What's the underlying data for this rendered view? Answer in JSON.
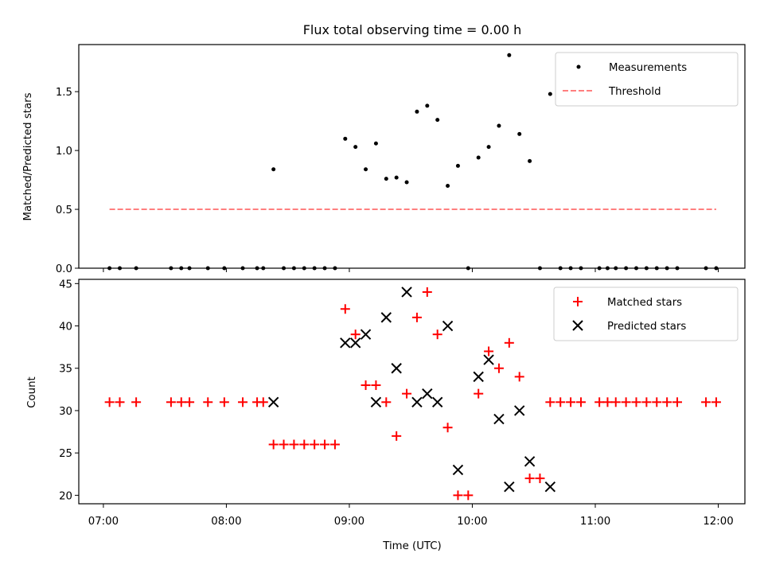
{
  "chart_data": [
    {
      "type": "scatter",
      "panel": "top",
      "title": "Flux total observing time = 0.00 h",
      "xlabel": "",
      "ylabel": "Matched/Predicted stars",
      "xlim": [
        "06:48",
        "12:13"
      ],
      "ylim": [
        0,
        1.9
      ],
      "yticks": [
        "0.0",
        "0.5",
        "1.0",
        "1.5"
      ],
      "legend_position": "top-right",
      "colors": {
        "measurements": "#000000",
        "threshold": "#ff7f7f"
      },
      "series": [
        {
          "name": "Measurements",
          "marker": "dot",
          "points": [
            [
              "07:03",
              0.0
            ],
            [
              "07:08",
              0.0
            ],
            [
              "07:16",
              0.0
            ],
            [
              "07:33",
              0.0
            ],
            [
              "07:38",
              0.0
            ],
            [
              "07:42",
              0.0
            ],
            [
              "07:51",
              0.0
            ],
            [
              "07:59",
              0.0
            ],
            [
              "08:08",
              0.0
            ],
            [
              "08:15",
              0.0
            ],
            [
              "08:18",
              0.0
            ],
            [
              "08:23",
              0.84
            ],
            [
              "08:28",
              0.0
            ],
            [
              "08:33",
              0.0
            ],
            [
              "08:38",
              0.0
            ],
            [
              "08:43",
              0.0
            ],
            [
              "08:48",
              0.0
            ],
            [
              "08:53",
              0.0
            ],
            [
              "08:58",
              1.1
            ],
            [
              "09:03",
              1.03
            ],
            [
              "09:08",
              0.84
            ],
            [
              "09:13",
              1.06
            ],
            [
              "09:18",
              0.76
            ],
            [
              "09:23",
              0.77
            ],
            [
              "09:28",
              0.73
            ],
            [
              "09:33",
              1.33
            ],
            [
              "09:38",
              1.38
            ],
            [
              "09:43",
              1.26
            ],
            [
              "09:48",
              0.7
            ],
            [
              "09:53",
              0.87
            ],
            [
              "09:58",
              0.0
            ],
            [
              "10:03",
              0.94
            ],
            [
              "10:08",
              1.03
            ],
            [
              "10:13",
              1.21
            ],
            [
              "10:18",
              1.81
            ],
            [
              "10:23",
              1.14
            ],
            [
              "10:28",
              0.91
            ],
            [
              "10:33",
              0.0
            ],
            [
              "10:38",
              1.48
            ],
            [
              "10:43",
              0.0
            ],
            [
              "10:48",
              0.0
            ],
            [
              "10:53",
              0.0
            ],
            [
              "11:02",
              0.0
            ],
            [
              "11:06",
              0.0
            ],
            [
              "11:10",
              0.0
            ],
            [
              "11:15",
              0.0
            ],
            [
              "11:20",
              0.0
            ],
            [
              "11:25",
              0.0
            ],
            [
              "11:30",
              0.0
            ],
            [
              "11:35",
              0.0
            ],
            [
              "11:40",
              0.0
            ],
            [
              "11:54",
              0.0
            ],
            [
              "11:59",
              0.0
            ]
          ]
        },
        {
          "name": "Threshold",
          "style": "dashed",
          "points": [
            [
              "07:03",
              0.5
            ],
            [
              "11:59",
              0.5
            ]
          ]
        }
      ]
    },
    {
      "type": "scatter",
      "panel": "bottom",
      "title": "",
      "xlabel": "Time (UTC)",
      "ylabel": "Count",
      "xlim": [
        "06:48",
        "12:13"
      ],
      "ylim": [
        19,
        45.5
      ],
      "yticks": [
        "20",
        "25",
        "30",
        "35",
        "40",
        "45"
      ],
      "xticks": [
        "07:00",
        "08:00",
        "09:00",
        "10:00",
        "11:00",
        "12:00"
      ],
      "legend_position": "top-right",
      "colors": {
        "matched": "#ff0000",
        "predicted": "#000000"
      },
      "series": [
        {
          "name": "Matched stars",
          "marker": "plus",
          "points": [
            [
              "07:03",
              31
            ],
            [
              "07:08",
              31
            ],
            [
              "07:16",
              31
            ],
            [
              "07:33",
              31
            ],
            [
              "07:38",
              31
            ],
            [
              "07:42",
              31
            ],
            [
              "07:51",
              31
            ],
            [
              "07:59",
              31
            ],
            [
              "08:08",
              31
            ],
            [
              "08:15",
              31
            ],
            [
              "08:18",
              31
            ],
            [
              "08:23",
              26
            ],
            [
              "08:28",
              26
            ],
            [
              "08:33",
              26
            ],
            [
              "08:38",
              26
            ],
            [
              "08:43",
              26
            ],
            [
              "08:48",
              26
            ],
            [
              "08:53",
              26
            ],
            [
              "08:58",
              42
            ],
            [
              "09:03",
              39
            ],
            [
              "09:08",
              33
            ],
            [
              "09:13",
              33
            ],
            [
              "09:18",
              31
            ],
            [
              "09:23",
              27
            ],
            [
              "09:28",
              32
            ],
            [
              "09:33",
              41
            ],
            [
              "09:38",
              44
            ],
            [
              "09:43",
              39
            ],
            [
              "09:48",
              28
            ],
            [
              "09:53",
              20
            ],
            [
              "09:58",
              20
            ],
            [
              "10:03",
              32
            ],
            [
              "10:08",
              37
            ],
            [
              "10:13",
              35
            ],
            [
              "10:18",
              38
            ],
            [
              "10:23",
              34
            ],
            [
              "10:28",
              22
            ],
            [
              "10:33",
              22
            ],
            [
              "10:38",
              31
            ],
            [
              "10:43",
              31
            ],
            [
              "10:48",
              31
            ],
            [
              "10:53",
              31
            ],
            [
              "11:02",
              31
            ],
            [
              "11:06",
              31
            ],
            [
              "11:10",
              31
            ],
            [
              "11:15",
              31
            ],
            [
              "11:20",
              31
            ],
            [
              "11:25",
              31
            ],
            [
              "11:30",
              31
            ],
            [
              "11:35",
              31
            ],
            [
              "11:40",
              31
            ],
            [
              "11:54",
              31
            ],
            [
              "11:59",
              31
            ]
          ]
        },
        {
          "name": "Predicted stars",
          "marker": "x",
          "points": [
            [
              "08:23",
              31
            ],
            [
              "08:58",
              38
            ],
            [
              "09:03",
              38
            ],
            [
              "09:08",
              39
            ],
            [
              "09:13",
              31
            ],
            [
              "09:18",
              41
            ],
            [
              "09:23",
              35
            ],
            [
              "09:28",
              44
            ],
            [
              "09:33",
              31
            ],
            [
              "09:38",
              32
            ],
            [
              "09:43",
              31
            ],
            [
              "09:48",
              40
            ],
            [
              "09:53",
              23
            ],
            [
              "10:03",
              34
            ],
            [
              "10:08",
              36
            ],
            [
              "10:13",
              29
            ],
            [
              "10:18",
              21
            ],
            [
              "10:23",
              30
            ],
            [
              "10:28",
              24
            ],
            [
              "10:38",
              21
            ]
          ]
        }
      ]
    }
  ]
}
